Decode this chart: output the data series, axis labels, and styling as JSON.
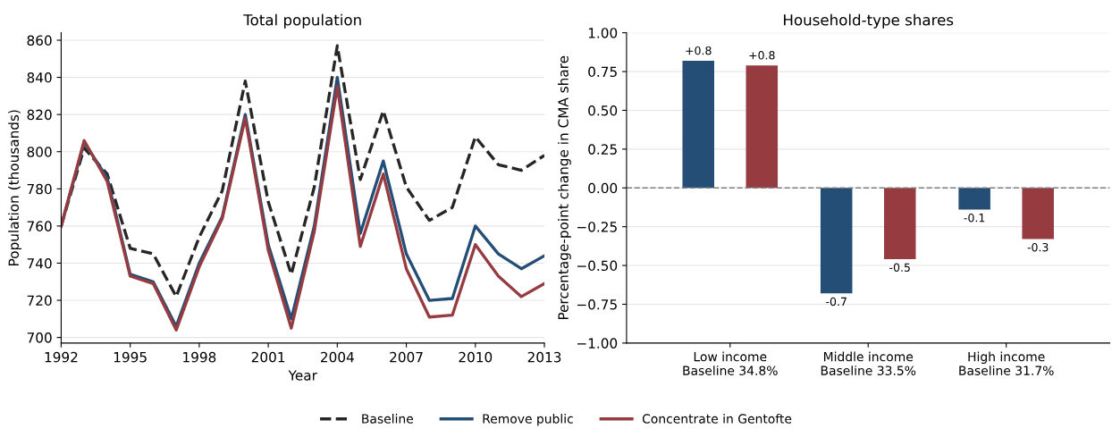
{
  "chart_data": [
    {
      "type": "line",
      "title": "Total population",
      "xlabel": "Year",
      "ylabel": "Population (thousands)",
      "x": [
        1992,
        1993,
        1994,
        1995,
        1996,
        1997,
        1998,
        1999,
        2000,
        2001,
        2002,
        2003,
        2004,
        2005,
        2006,
        2007,
        2008,
        2009,
        2010,
        2011,
        2012,
        2013
      ],
      "series": [
        {
          "name": "Baseline",
          "color": "#262626",
          "line_style": "dashed",
          "values": [
            760,
            802,
            788,
            748,
            745,
            722,
            754,
            779,
            838,
            773,
            734,
            781,
            857,
            785,
            822,
            781,
            763,
            770,
            808,
            793,
            790,
            798
          ]
        },
        {
          "name": "Remove public",
          "color": "#254e77",
          "line_style": "solid",
          "values": [
            760,
            805,
            786,
            734,
            730,
            706,
            740,
            765,
            820,
            750,
            710,
            760,
            840,
            756,
            795,
            745,
            720,
            721,
            760,
            745,
            737,
            744
          ]
        },
        {
          "name": "Concentrate in Gentofte",
          "color": "#963c41",
          "line_style": "solid",
          "values": [
            760,
            806,
            784,
            733,
            729,
            704,
            738,
            764,
            818,
            747,
            705,
            757,
            835,
            749,
            788,
            737,
            711,
            712,
            750,
            733,
            722,
            729
          ]
        }
      ],
      "xlim": [
        1992,
        2013
      ],
      "xticks": [
        1992,
        1995,
        1998,
        2001,
        2004,
        2007,
        2010,
        2013
      ],
      "ylim": [
        697,
        864
      ],
      "yticks": [
        700,
        720,
        740,
        760,
        780,
        800,
        820,
        840,
        860
      ],
      "grid": "y",
      "legend": "bottom"
    },
    {
      "type": "bar",
      "title": "Household-type shares",
      "ylabel": "Percentage-point change in CMA share",
      "categories": [
        "Low income\nBaseline 34.8%",
        "Middle income\nBaseline 33.5%",
        "High income\nBaseline 31.7%"
      ],
      "series": [
        {
          "color": "#254e77",
          "values": [
            0.82,
            -0.68,
            -0.14
          ],
          "value_labels": [
            "+0.8",
            "-0.7",
            "-0.1"
          ]
        },
        {
          "color": "#963c41",
          "values": [
            0.79,
            -0.46,
            -0.33
          ],
          "value_labels": [
            "+0.8",
            "-0.5",
            "-0.3"
          ]
        }
      ],
      "ylim": [
        -1.0,
        1.0
      ],
      "yticks": [
        {
          "value": -1.0,
          "label": "−1.00"
        },
        {
          "value": -0.75,
          "label": "−0.75"
        },
        {
          "value": -0.5,
          "label": "−0.50"
        },
        {
          "value": -0.25,
          "label": "−0.25"
        },
        {
          "value": 0.0,
          "label": "0.00"
        },
        {
          "value": 0.25,
          "label": "0.25"
        },
        {
          "value": 0.5,
          "label": "0.50"
        },
        {
          "value": 0.75,
          "label": "0.75"
        },
        {
          "value": 1.0,
          "label": "1.00"
        }
      ],
      "ref_lines": [
        {
          "axis": "y",
          "value": 0,
          "color": "#808080",
          "line_style": "dashed"
        }
      ],
      "grid": "y"
    }
  ]
}
